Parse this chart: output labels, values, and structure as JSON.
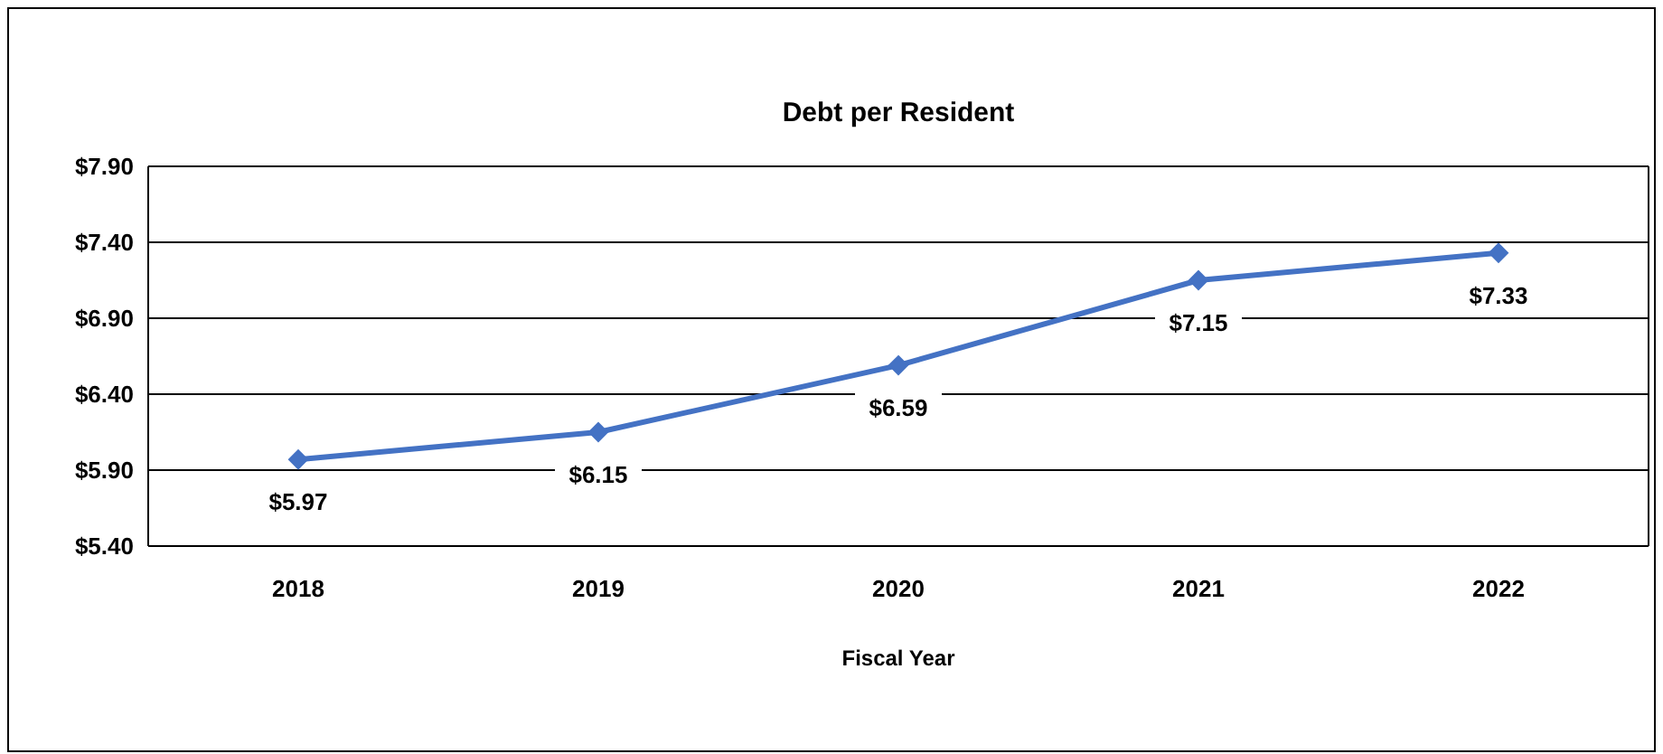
{
  "chart_data": {
    "type": "line",
    "title": "Debt per Resident",
    "xlabel": "Fiscal Year",
    "categories": [
      "2018",
      "2019",
      "2020",
      "2021",
      "2022"
    ],
    "series": [
      {
        "color": "#4472c4",
        "values": [
          5.97,
          6.15,
          6.59,
          7.15,
          7.33
        ],
        "value_labels": [
          "$5.97",
          "$6.15",
          "$6.59",
          "$7.15",
          "$7.33"
        ]
      }
    ],
    "ylim": [
      5.4,
      7.9
    ],
    "yticks": [
      {
        "value": 5.4,
        "label": "$5.40"
      },
      {
        "value": 5.9,
        "label": "$5.90"
      },
      {
        "value": 6.4,
        "label": "$6.40"
      },
      {
        "value": 6.9,
        "label": "$6.90"
      },
      {
        "value": 7.4,
        "label": "$7.40"
      },
      {
        "value": 7.9,
        "label": "$7.90"
      }
    ],
    "grid": "y",
    "marker": "diamond",
    "line_style": "solid"
  }
}
